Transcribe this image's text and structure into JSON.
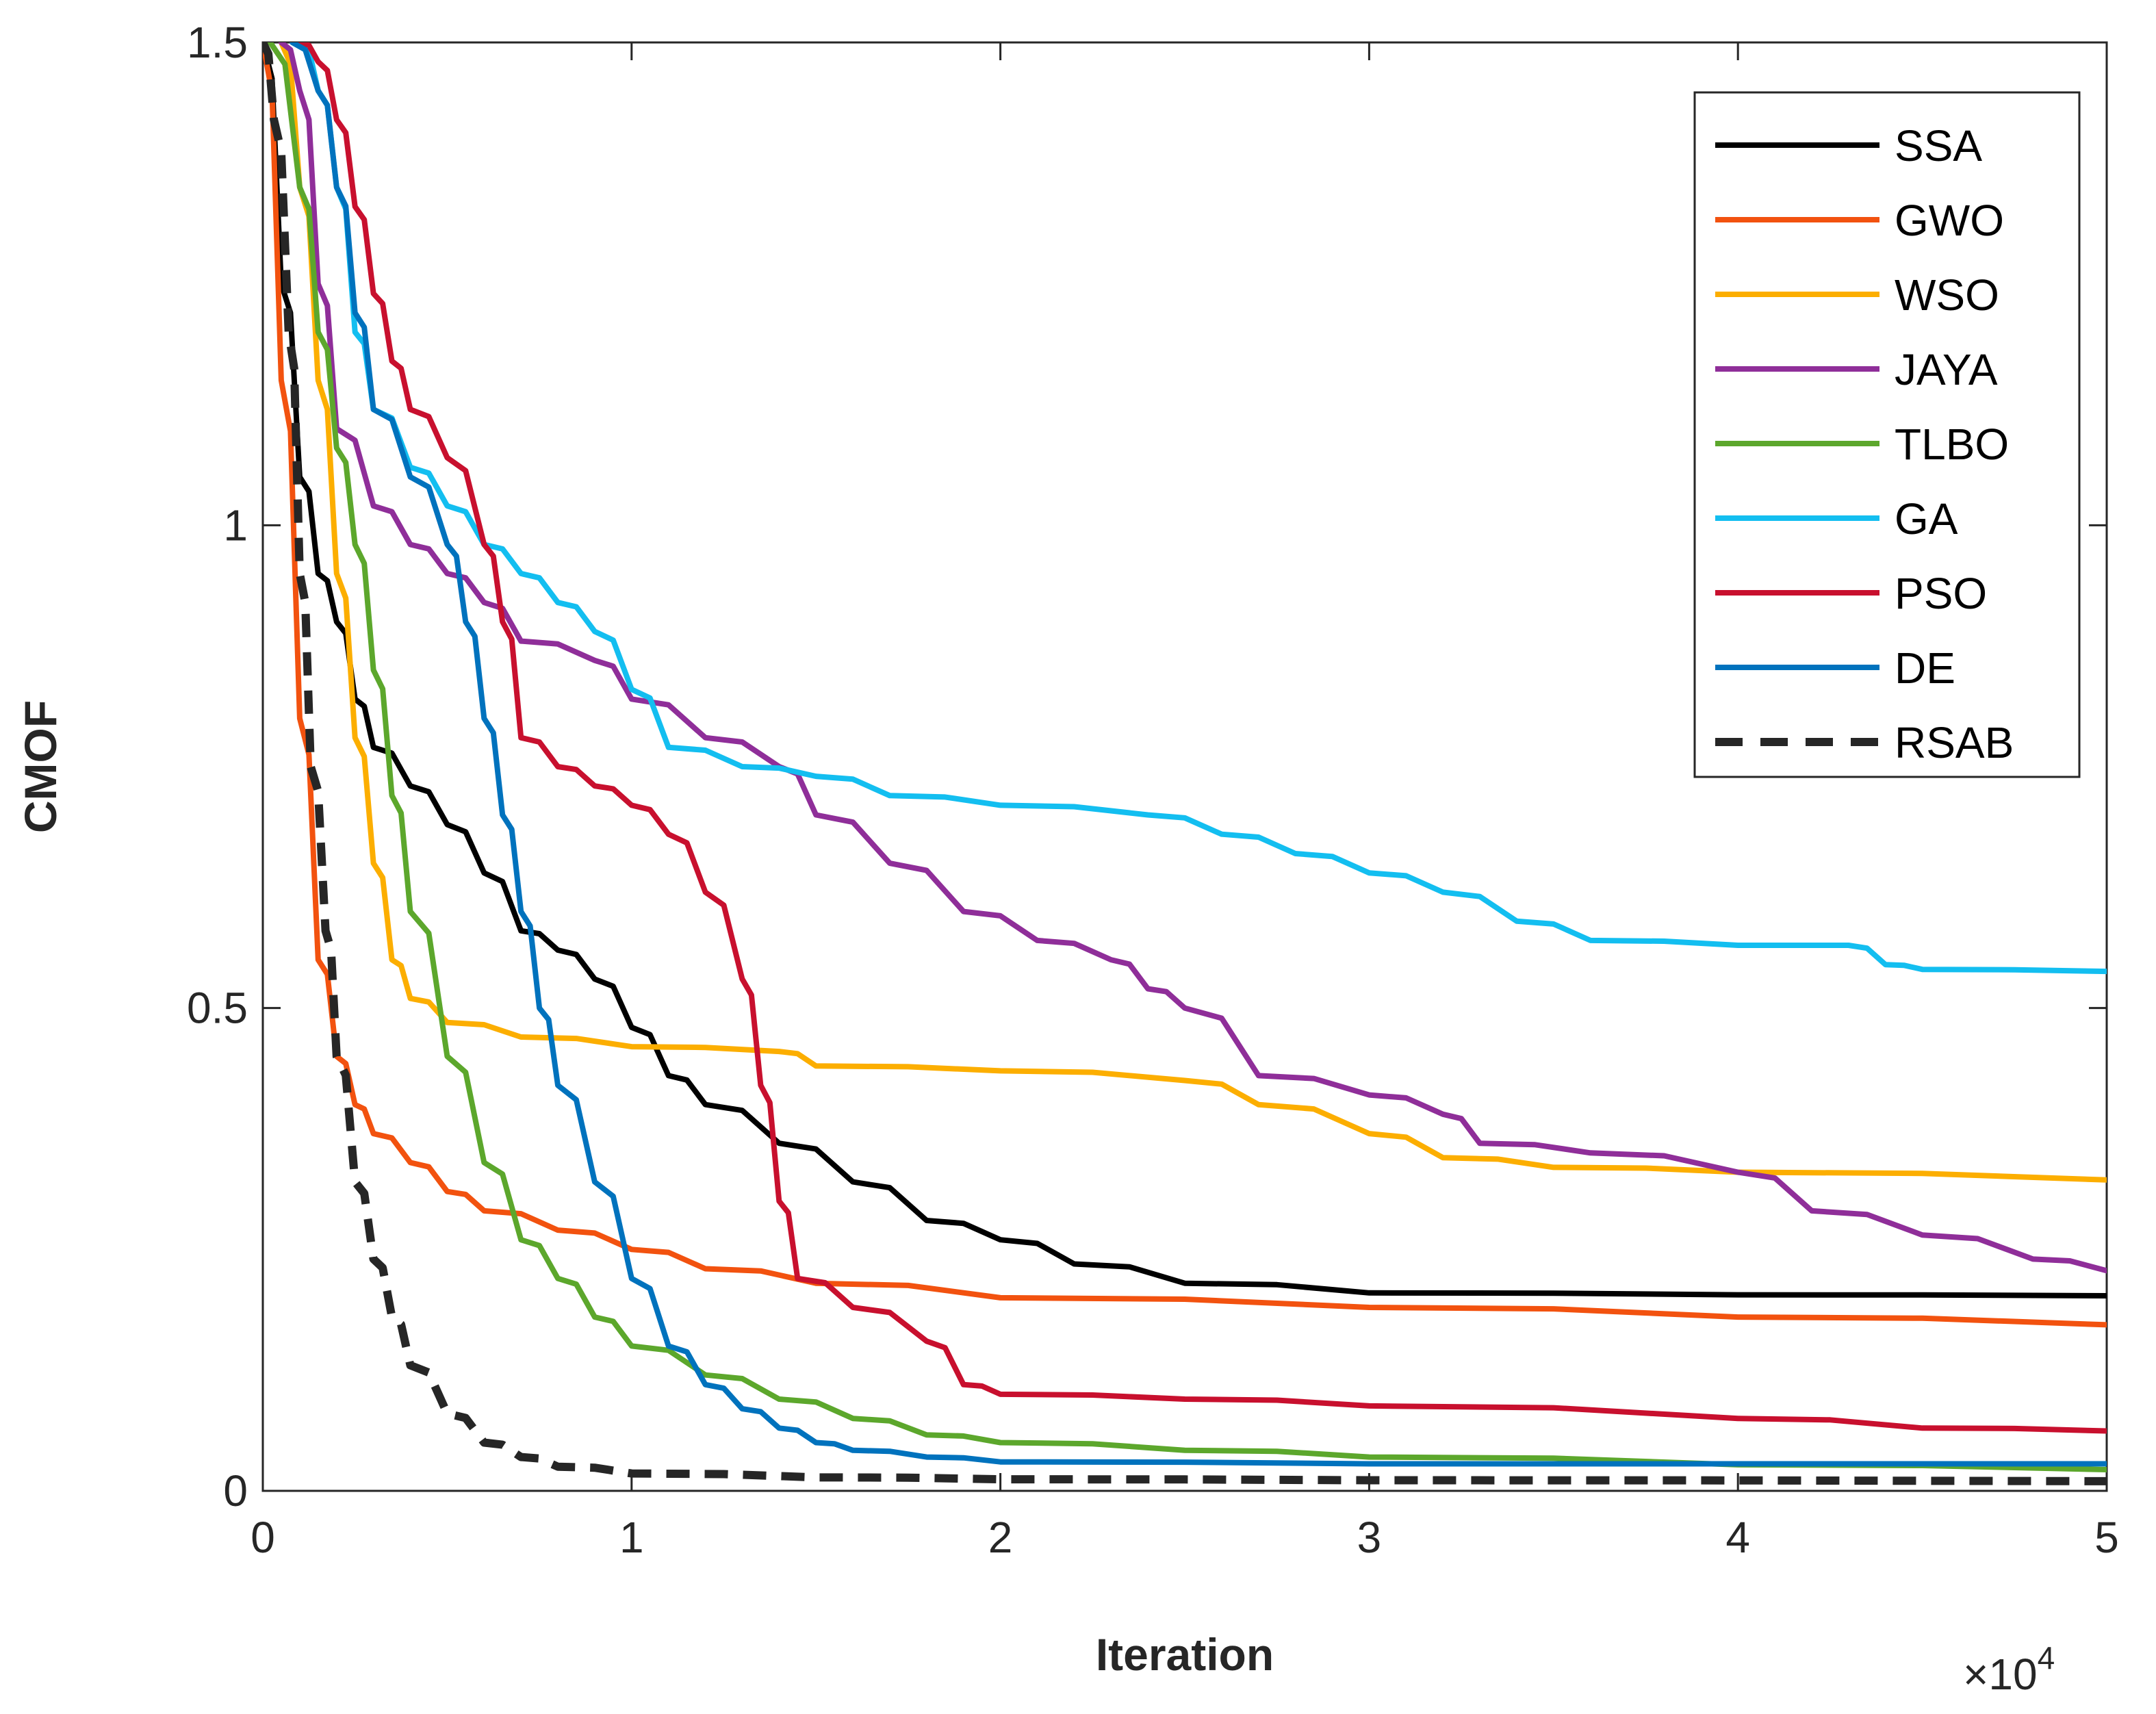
{
  "chart_data": {
    "type": "line",
    "title": "",
    "xlabel": "Iteration",
    "ylabel": "CMOF",
    "x_exponent_label": "×10",
    "x_exponent_power": "4",
    "xlim": [
      0,
      5
    ],
    "ylim": [
      0,
      1.5
    ],
    "grid": false,
    "legend_location": "top-right",
    "xticks": [
      0,
      1,
      2,
      3,
      4,
      5
    ],
    "xtick_labels": [
      "0",
      "1",
      "2",
      "3",
      "4",
      "5"
    ],
    "yticks": [
      0,
      0.5,
      1,
      1.5
    ],
    "ytick_labels": [
      "0",
      "0.5",
      "1",
      "1.5"
    ],
    "series": [
      {
        "name": "SSA",
        "color": "#000000",
        "dash": "solid",
        "points": [
          [
            0,
            1.5
          ],
          [
            0.05,
            1.25
          ],
          [
            0.1,
            1.05
          ],
          [
            0.15,
            0.95
          ],
          [
            0.2,
            0.9
          ],
          [
            0.25,
            0.82
          ],
          [
            0.3,
            0.77
          ],
          [
            0.4,
            0.73
          ],
          [
            0.5,
            0.69
          ],
          [
            0.6,
            0.64
          ],
          [
            0.7,
            0.58
          ],
          [
            0.8,
            0.56
          ],
          [
            0.9,
            0.53
          ],
          [
            1.0,
            0.48
          ],
          [
            1.1,
            0.43
          ],
          [
            1.2,
            0.4
          ],
          [
            1.4,
            0.36
          ],
          [
            1.6,
            0.32
          ],
          [
            1.8,
            0.28
          ],
          [
            2.0,
            0.26
          ],
          [
            2.2,
            0.235
          ],
          [
            2.5,
            0.215
          ],
          [
            3.0,
            0.205
          ],
          [
            4.0,
            0.203
          ],
          [
            5.0,
            0.202
          ]
        ]
      },
      {
        "name": "GWO",
        "color": "#F2520F",
        "dash": "solid",
        "points": [
          [
            0,
            1.5
          ],
          [
            0.05,
            1.15
          ],
          [
            0.1,
            0.8
          ],
          [
            0.15,
            0.55
          ],
          [
            0.2,
            0.45
          ],
          [
            0.25,
            0.4
          ],
          [
            0.3,
            0.37
          ],
          [
            0.4,
            0.34
          ],
          [
            0.5,
            0.31
          ],
          [
            0.6,
            0.29
          ],
          [
            0.8,
            0.27
          ],
          [
            1.0,
            0.25
          ],
          [
            1.2,
            0.23
          ],
          [
            1.5,
            0.215
          ],
          [
            2.0,
            0.2
          ],
          [
            3.0,
            0.19
          ],
          [
            4.0,
            0.18
          ],
          [
            5.0,
            0.172
          ]
        ]
      },
      {
        "name": "WSO",
        "color": "#FCAE00",
        "dash": "solid",
        "points": [
          [
            0.05,
            1.5
          ],
          [
            0.1,
            1.35
          ],
          [
            0.15,
            1.15
          ],
          [
            0.2,
            0.95
          ],
          [
            0.25,
            0.78
          ],
          [
            0.3,
            0.65
          ],
          [
            0.35,
            0.55
          ],
          [
            0.4,
            0.51
          ],
          [
            0.5,
            0.485
          ],
          [
            0.7,
            0.47
          ],
          [
            1.0,
            0.46
          ],
          [
            1.4,
            0.455
          ],
          [
            1.5,
            0.44
          ],
          [
            2.0,
            0.435
          ],
          [
            2.5,
            0.425
          ],
          [
            2.7,
            0.4
          ],
          [
            3.0,
            0.37
          ],
          [
            3.2,
            0.345
          ],
          [
            3.5,
            0.335
          ],
          [
            4.0,
            0.33
          ],
          [
            5.0,
            0.322
          ]
        ]
      },
      {
        "name": "JAYA",
        "color": "#8F2E99",
        "dash": "solid",
        "points": [
          [
            0.05,
            1.5
          ],
          [
            0.1,
            1.45
          ],
          [
            0.15,
            1.25
          ],
          [
            0.2,
            1.1
          ],
          [
            0.3,
            1.02
          ],
          [
            0.4,
            0.98
          ],
          [
            0.5,
            0.95
          ],
          [
            0.6,
            0.92
          ],
          [
            0.7,
            0.88
          ],
          [
            0.9,
            0.86
          ],
          [
            1.0,
            0.82
          ],
          [
            1.2,
            0.78
          ],
          [
            1.4,
            0.75
          ],
          [
            1.5,
            0.7
          ],
          [
            1.7,
            0.65
          ],
          [
            1.9,
            0.6
          ],
          [
            2.1,
            0.57
          ],
          [
            2.3,
            0.55
          ],
          [
            2.4,
            0.52
          ],
          [
            2.5,
            0.5
          ],
          [
            2.7,
            0.43
          ],
          [
            3.0,
            0.41
          ],
          [
            3.2,
            0.39
          ],
          [
            3.3,
            0.36
          ],
          [
            3.6,
            0.35
          ],
          [
            4.0,
            0.33
          ],
          [
            4.2,
            0.29
          ],
          [
            4.5,
            0.265
          ],
          [
            4.8,
            0.24
          ],
          [
            5.0,
            0.228
          ]
        ]
      },
      {
        "name": "TLBO",
        "color": "#5CA72C",
        "dash": "solid",
        "points": [
          [
            0.02,
            1.5
          ],
          [
            0.1,
            1.35
          ],
          [
            0.15,
            1.2
          ],
          [
            0.2,
            1.08
          ],
          [
            0.25,
            0.98
          ],
          [
            0.3,
            0.85
          ],
          [
            0.35,
            0.72
          ],
          [
            0.4,
            0.6
          ],
          [
            0.5,
            0.45
          ],
          [
            0.6,
            0.34
          ],
          [
            0.7,
            0.26
          ],
          [
            0.8,
            0.22
          ],
          [
            0.9,
            0.18
          ],
          [
            1.0,
            0.15
          ],
          [
            1.2,
            0.12
          ],
          [
            1.4,
            0.095
          ],
          [
            1.6,
            0.075
          ],
          [
            1.8,
            0.058
          ],
          [
            2.0,
            0.05
          ],
          [
            2.5,
            0.042
          ],
          [
            3.0,
            0.035
          ],
          [
            4.0,
            0.027
          ],
          [
            5.0,
            0.022
          ]
        ]
      },
      {
        "name": "GA",
        "color": "#13BEF0",
        "dash": "solid",
        "points": [
          [
            0.1,
            1.5
          ],
          [
            0.15,
            1.45
          ],
          [
            0.2,
            1.35
          ],
          [
            0.25,
            1.2
          ],
          [
            0.3,
            1.12
          ],
          [
            0.4,
            1.06
          ],
          [
            0.5,
            1.02
          ],
          [
            0.6,
            0.98
          ],
          [
            0.7,
            0.95
          ],
          [
            0.8,
            0.92
          ],
          [
            0.9,
            0.89
          ],
          [
            1.0,
            0.83
          ],
          [
            1.1,
            0.77
          ],
          [
            1.3,
            0.75
          ],
          [
            1.5,
            0.74
          ],
          [
            1.7,
            0.72
          ],
          [
            2.0,
            0.71
          ],
          [
            2.4,
            0.7
          ],
          [
            2.6,
            0.68
          ],
          [
            2.8,
            0.66
          ],
          [
            3.0,
            0.64
          ],
          [
            3.2,
            0.62
          ],
          [
            3.4,
            0.59
          ],
          [
            3.6,
            0.57
          ],
          [
            4.0,
            0.565
          ],
          [
            4.3,
            0.565
          ],
          [
            4.4,
            0.545
          ],
          [
            4.5,
            0.54
          ],
          [
            5.0,
            0.538
          ]
        ]
      },
      {
        "name": "PSO",
        "color": "#C8102E",
        "dash": "solid",
        "points": [
          [
            0.1,
            1.5
          ],
          [
            0.15,
            1.48
          ],
          [
            0.2,
            1.42
          ],
          [
            0.25,
            1.33
          ],
          [
            0.3,
            1.24
          ],
          [
            0.35,
            1.17
          ],
          [
            0.4,
            1.12
          ],
          [
            0.5,
            1.07
          ],
          [
            0.6,
            0.98
          ],
          [
            0.65,
            0.9
          ],
          [
            0.7,
            0.78
          ],
          [
            0.8,
            0.75
          ],
          [
            0.9,
            0.73
          ],
          [
            1.0,
            0.71
          ],
          [
            1.1,
            0.68
          ],
          [
            1.2,
            0.62
          ],
          [
            1.3,
            0.53
          ],
          [
            1.35,
            0.42
          ],
          [
            1.4,
            0.3
          ],
          [
            1.45,
            0.22
          ],
          [
            1.6,
            0.19
          ],
          [
            1.8,
            0.155
          ],
          [
            1.9,
            0.11
          ],
          [
            2.0,
            0.1
          ],
          [
            2.5,
            0.095
          ],
          [
            3.0,
            0.088
          ],
          [
            4.0,
            0.075
          ],
          [
            4.5,
            0.065
          ],
          [
            5.0,
            0.062
          ]
        ]
      },
      {
        "name": "DE",
        "color": "#0072BD",
        "dash": "solid",
        "points": [
          [
            0.08,
            1.5
          ],
          [
            0.15,
            1.45
          ],
          [
            0.2,
            1.35
          ],
          [
            0.25,
            1.22
          ],
          [
            0.3,
            1.12
          ],
          [
            0.4,
            1.05
          ],
          [
            0.5,
            0.98
          ],
          [
            0.55,
            0.9
          ],
          [
            0.6,
            0.8
          ],
          [
            0.65,
            0.7
          ],
          [
            0.7,
            0.6
          ],
          [
            0.75,
            0.5
          ],
          [
            0.8,
            0.42
          ],
          [
            0.9,
            0.32
          ],
          [
            1.0,
            0.22
          ],
          [
            1.1,
            0.15
          ],
          [
            1.2,
            0.11
          ],
          [
            1.3,
            0.085
          ],
          [
            1.4,
            0.065
          ],
          [
            1.5,
            0.05
          ],
          [
            1.6,
            0.042
          ],
          [
            1.8,
            0.035
          ],
          [
            2.0,
            0.03
          ],
          [
            3.0,
            0.028
          ],
          [
            4.0,
            0.028
          ],
          [
            5.0,
            0.028
          ]
        ]
      },
      {
        "name": "RSAB",
        "color": "#262626",
        "dash": "dashed",
        "points": [
          [
            0,
            1.5
          ],
          [
            0.03,
            1.42
          ],
          [
            0.07,
            1.2
          ],
          [
            0.1,
            0.95
          ],
          [
            0.13,
            0.75
          ],
          [
            0.17,
            0.58
          ],
          [
            0.2,
            0.45
          ],
          [
            0.25,
            0.32
          ],
          [
            0.3,
            0.24
          ],
          [
            0.35,
            0.18
          ],
          [
            0.4,
            0.13
          ],
          [
            0.5,
            0.08
          ],
          [
            0.6,
            0.05
          ],
          [
            0.7,
            0.035
          ],
          [
            0.8,
            0.025
          ],
          [
            1.0,
            0.018
          ],
          [
            1.5,
            0.014
          ],
          [
            2.0,
            0.012
          ],
          [
            3.0,
            0.011
          ],
          [
            5.0,
            0.01
          ]
        ]
      }
    ]
  }
}
